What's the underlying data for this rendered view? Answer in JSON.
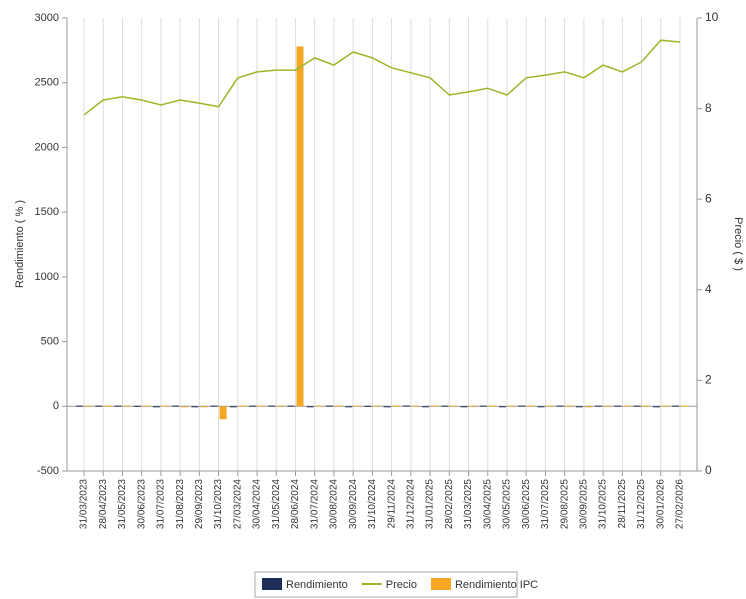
{
  "chart_data": {
    "type": "bar_line",
    "categories": [
      "31/03/2023",
      "28/04/2023",
      "31/05/2023",
      "30/06/2023",
      "31/07/2023",
      "31/08/2023",
      "29/09/2023",
      "31/10/2023",
      "27/03/2024",
      "30/04/2024",
      "31/05/2024",
      "28/06/2024",
      "31/07/2024",
      "30/08/2024",
      "30/09/2024",
      "31/10/2024",
      "29/11/2024",
      "31/12/2024",
      "31/01/2025",
      "28/02/2025",
      "31/03/2025",
      "30/04/2025",
      "30/05/2025",
      "30/06/2025",
      "31/07/2025",
      "29/08/2025",
      "30/09/2025",
      "31/10/2025",
      "28/11/2025",
      "31/12/2025",
      "30/01/2026",
      "27/02/2026"
    ],
    "series": [
      {
        "name": "Rendimiento",
        "color": "#1f2d5a",
        "kind": "bar",
        "values": [
          5,
          5,
          5,
          4,
          -3,
          5,
          -3,
          5,
          -4,
          5,
          5,
          5,
          -3,
          5,
          -3,
          4,
          -4,
          6,
          -3,
          5,
          -3,
          5,
          -3,
          5,
          -3,
          5,
          -3,
          5,
          5,
          5,
          -3,
          5
        ]
      },
      {
        "name": "Precio",
        "color": "#9ab82a",
        "kind": "line",
        "axis": "y2",
        "values": [
          7.86,
          8.19,
          8.26,
          8.19,
          8.08,
          8.19,
          8.12,
          8.04,
          8.68,
          8.81,
          8.85,
          8.85,
          9.12,
          8.96,
          9.25,
          9.12,
          8.9,
          8.79,
          8.68,
          8.3,
          8.37,
          8.45,
          8.3,
          8.68,
          8.74,
          8.81,
          8.68,
          8.96,
          8.81,
          9.03,
          9.51,
          9.47
        ]
      },
      {
        "name": "Rendimiento IPC",
        "color": "#f5a623",
        "kind": "bar",
        "values": [
          5,
          5,
          5,
          5,
          5,
          -5,
          -5,
          -100,
          5,
          5,
          5,
          2780,
          5,
          5,
          5,
          5,
          5,
          5,
          5,
          5,
          5,
          5,
          5,
          5,
          5,
          5,
          -5,
          5,
          5,
          5,
          5,
          5
        ]
      }
    ],
    "y_label": "Rendimiento ( % )",
    "y2_label": "Precio ( $ )",
    "ylim": [
      -500,
      3000
    ],
    "yticks": [
      -500,
      0,
      500,
      1000,
      1500,
      2000,
      2500,
      3000
    ],
    "y2lim": [
      0,
      10
    ],
    "y2ticks": [
      0,
      2,
      4,
      6,
      8,
      10
    ],
    "legend": "bottom"
  }
}
